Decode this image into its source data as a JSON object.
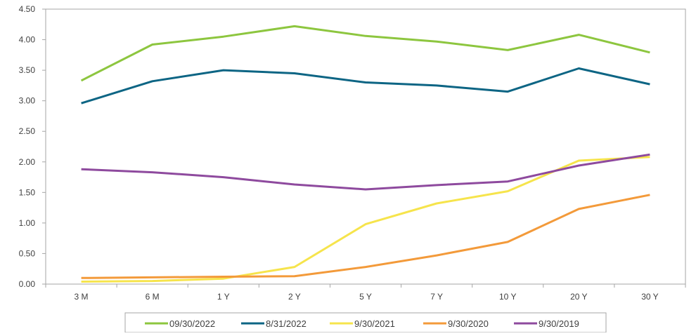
{
  "chart_data": {
    "type": "line",
    "title": "",
    "xlabel": "",
    "ylabel": "",
    "categories": [
      "3 M",
      "6 M",
      "1 Y",
      "2 Y",
      "5 Y",
      "7 Y",
      "10 Y",
      "20 Y",
      "30 Y"
    ],
    "ylim": [
      0,
      4.5
    ],
    "yticks": [
      "0.00",
      "0.50",
      "1.00",
      "1.50",
      "2.00",
      "2.50",
      "3.00",
      "3.50",
      "4.00",
      "4.50"
    ],
    "grid": false,
    "legend_position": "bottom",
    "series": [
      {
        "name": "09/30/2022",
        "color": "#8dc63f",
        "values": [
          3.33,
          3.92,
          4.05,
          4.22,
          4.06,
          3.97,
          3.83,
          4.08,
          3.79
        ]
      },
      {
        "name": "8/31/2022",
        "color": "#0d6584",
        "values": [
          2.96,
          3.32,
          3.5,
          3.45,
          3.3,
          3.25,
          3.15,
          3.53,
          3.27
        ]
      },
      {
        "name": "9/30/2021",
        "color": "#f6e44c",
        "values": [
          0.04,
          0.05,
          0.09,
          0.28,
          0.98,
          1.32,
          1.52,
          2.02,
          2.08
        ]
      },
      {
        "name": "9/30/2020",
        "color": "#f39a3a",
        "values": [
          0.1,
          0.11,
          0.12,
          0.13,
          0.28,
          0.47,
          0.69,
          1.23,
          1.46
        ]
      },
      {
        "name": "9/30/2019",
        "color": "#8e4a9e",
        "values": [
          1.88,
          1.83,
          1.75,
          1.63,
          1.55,
          1.62,
          1.68,
          1.94,
          2.12
        ]
      }
    ]
  }
}
